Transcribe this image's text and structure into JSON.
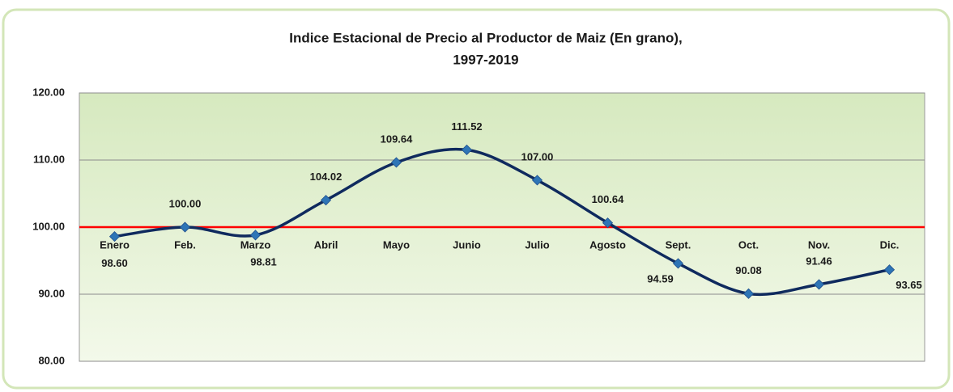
{
  "chart_data": {
    "type": "line",
    "title": [
      "Indice Estacional de Precio al Productor de Maiz  (En grano),",
      "1997-2019"
    ],
    "categories": [
      "Enero",
      "Feb.",
      "Marzo",
      "Abril",
      "Mayo",
      "Junio",
      "Julio",
      "Agosto",
      "Sept.",
      "Oct.",
      "Nov.",
      "Dic."
    ],
    "series": [
      {
        "name": null,
        "color": "#0f2a5e",
        "marker_color": "#2e75b6",
        "values": [
          98.6,
          100,
          98.81,
          104.02,
          109.64,
          111.52,
          107,
          100.64,
          94.59,
          90.08,
          91.46,
          93.65
        ],
        "value_labels": [
          "98.60",
          "100.00",
          "98.81",
          "104.02",
          "109.64",
          "111.52",
          "107.00",
          "100.64",
          "94.59",
          "90.08",
          "91.46",
          "93.65"
        ]
      }
    ],
    "smooth": true,
    "ylim": [
      80,
      120
    ],
    "yticks": [
      {
        "value": 80,
        "label": "80.00"
      },
      {
        "value": 90,
        "label": "90.00"
      },
      {
        "value": 100,
        "label": "100.00"
      },
      {
        "value": 110,
        "label": "110.00"
      },
      {
        "value": 120,
        "label": "120.00"
      }
    ],
    "grid": true,
    "reference_line": {
      "value": 100,
      "color": "#ff0000"
    }
  }
}
